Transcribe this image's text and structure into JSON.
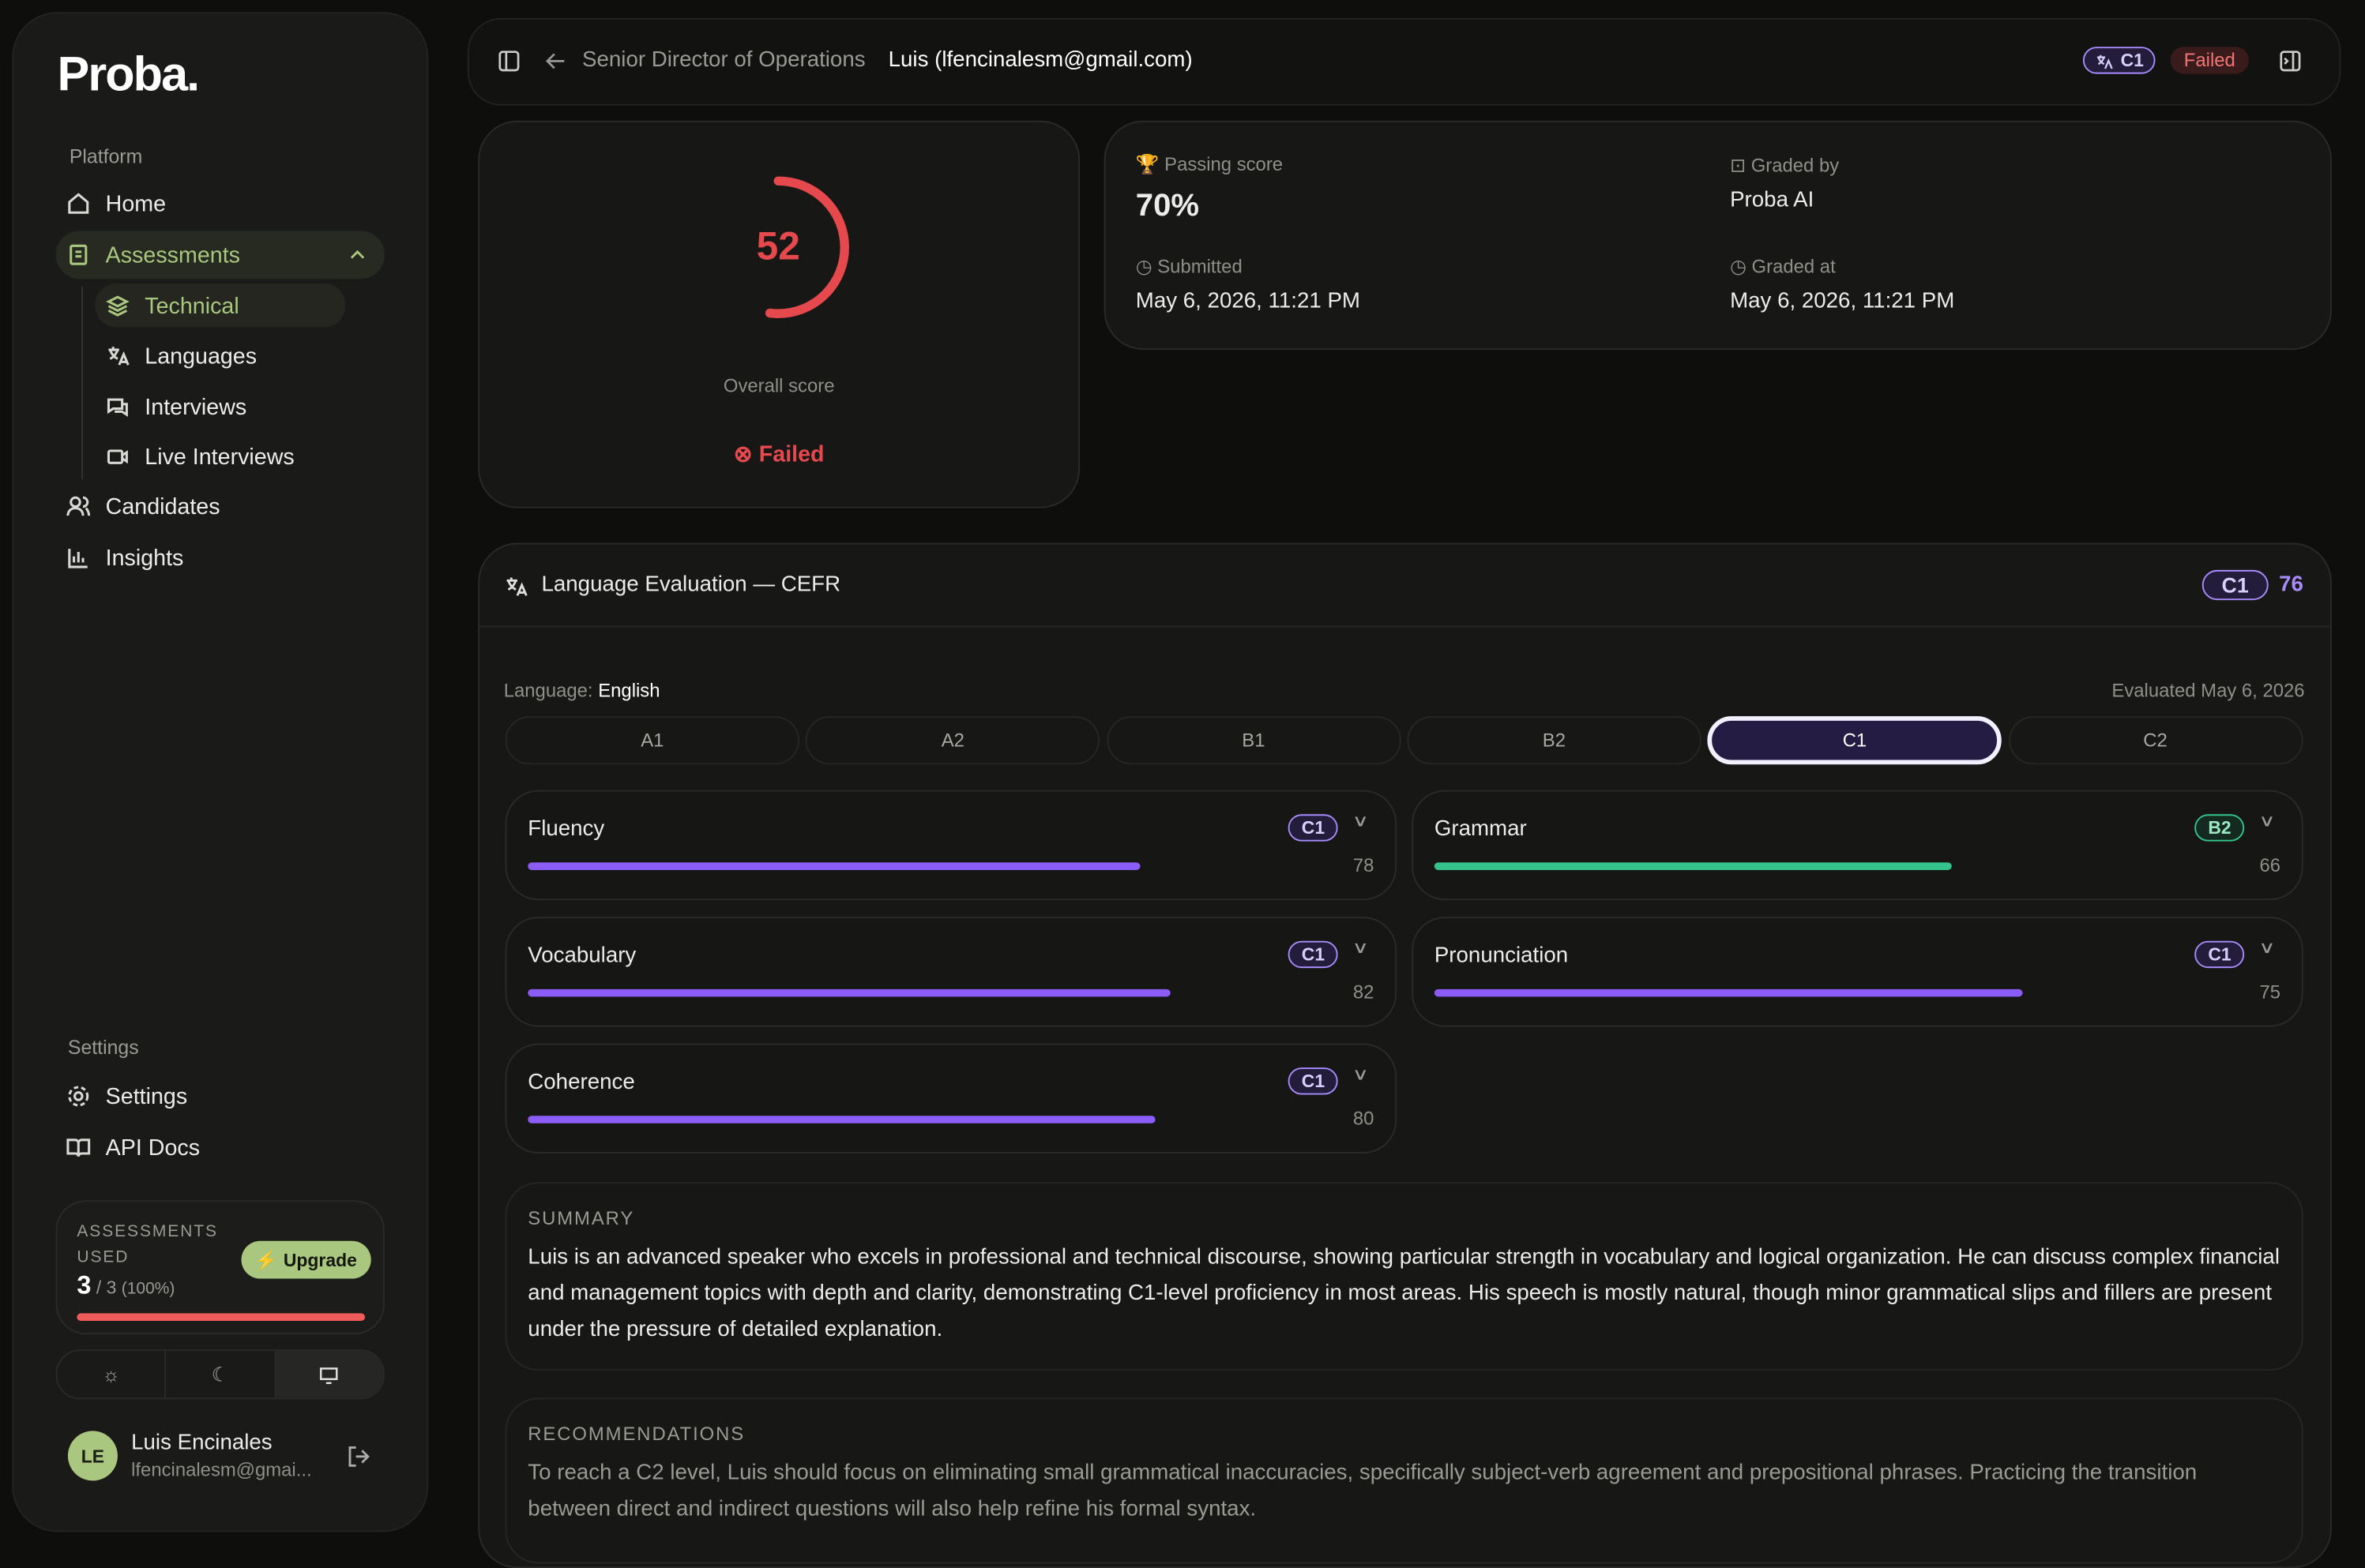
{
  "sidebar": {
    "logo": "Proba.",
    "platform_label": "Platform",
    "nav": [
      "Home",
      "Assessments"
    ],
    "assessment_types": [
      "Technical",
      "Languages",
      "Interviews",
      "Live Interviews"
    ],
    "nav_more": [
      "Candidates",
      "Insights"
    ],
    "settings_label": "Settings",
    "settings_nav": [
      "Settings",
      "API Docs"
    ],
    "usage": {
      "label": "ASSESSMENTS USED",
      "used": 3,
      "total": "/ 3",
      "percent": "(100%)",
      "upgrade": "Upgrade"
    },
    "user": {
      "initials": "LE",
      "name": "Luis Encinales",
      "email": "lfencinalesm@gmai..."
    }
  },
  "header": {
    "role": "Senior Director of Operations",
    "candidate": "Luis (lfencinalesm@gmail.com)",
    "level": "C1",
    "status": "Failed"
  },
  "overall": {
    "score": 52,
    "label": "Overall score",
    "status": "Failed"
  },
  "details": {
    "passing_score": {
      "label": "Passing score",
      "value": "70%"
    },
    "graded_by": {
      "label": "Graded by",
      "value": "Proba AI"
    },
    "submitted": {
      "label": "Submitted",
      "value": "May 6, 2026, 11:21 PM"
    },
    "graded_at": {
      "label": "Graded at",
      "value": "May 6, 2026, 11:21 PM"
    }
  },
  "evaluation": {
    "title": "Language Evaluation — CEFR",
    "level": "C1",
    "score": 76,
    "language_label": "Language:",
    "language": "English",
    "evaluated": "Evaluated May 6, 2026",
    "levels": [
      "A1",
      "A2",
      "B1",
      "B2",
      "C1",
      "C2"
    ],
    "skills": [
      {
        "name": "Fluency",
        "level": "C1",
        "score": 78,
        "color": "#8b5cf6"
      },
      {
        "name": "Grammar",
        "level": "B2",
        "score": 66,
        "color": "#34c38a"
      },
      {
        "name": "Vocabulary",
        "level": "C1",
        "score": 82,
        "color": "#8b5cf6"
      },
      {
        "name": "Pronunciation",
        "level": "C1",
        "score": 75,
        "color": "#8b5cf6"
      },
      {
        "name": "Coherence",
        "level": "C1",
        "score": 80,
        "color": "#8b5cf6"
      }
    ],
    "summary": {
      "title": "SUMMARY",
      "text": "Luis is an advanced speaker who excels in professional and technical discourse, showing particular strength in vocabulary and logical organization. He can discuss complex financial and management topics with depth and clarity, demonstrating C1-level proficiency in most areas. His speech is mostly natural, though minor grammatical slips and fillers are present under the pressure of detailed explanation."
    },
    "recommendations": {
      "title": "RECOMMENDATIONS",
      "text": "To reach a C2 level, Luis should focus on eliminating small grammatical inaccuracies, specifically subject-verb agreement and prepositional phrases. Practicing the transition between direct and indirect questions will also help refine his formal syntax."
    }
  }
}
